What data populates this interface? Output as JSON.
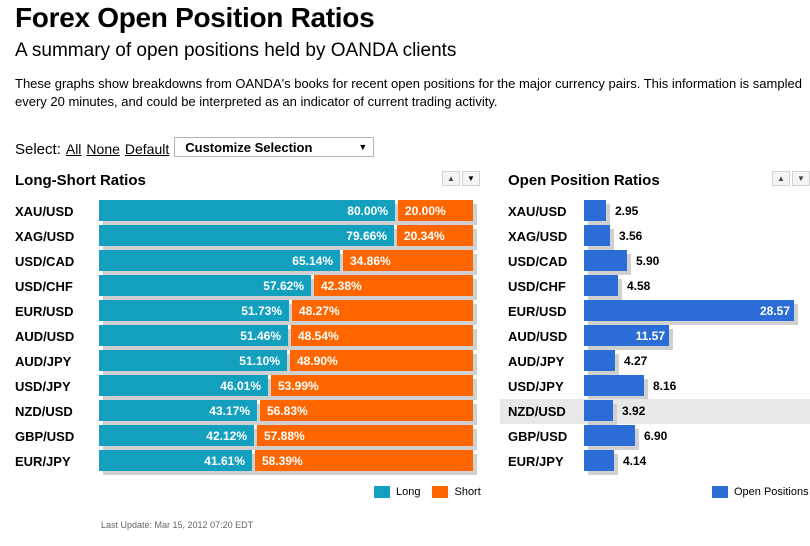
{
  "page": {
    "title": "Forex Open Position Ratios",
    "subtitle": "A summary of open positions held by OANDA clients",
    "description": "These graphs show breakdowns from OANDA's books for recent open positions for the major currency pairs. This information is sampled every 20 minutes, and could be interpreted as an indicator of current trading activity.",
    "last_update": "Last Update: Mar 15, 2012 07:20 EDT"
  },
  "select": {
    "label": "Select:",
    "links": [
      "All",
      "None",
      "Default"
    ],
    "dropdown_value": "Customize Selection"
  },
  "colors": {
    "long": "#13a0bf",
    "short": "#ff6600",
    "open_positions": "#2b6cd6"
  },
  "icons": {
    "sort_up": "triangle-up-icon",
    "sort_down": "triangle-down-icon",
    "dropdown": "triangle-down-icon"
  },
  "chart_data": [
    {
      "type": "bar",
      "orientation": "horizontal-stacked",
      "title": "Long-Short Ratios",
      "categories": [
        "XAU/USD",
        "XAG/USD",
        "USD/CAD",
        "USD/CHF",
        "EUR/USD",
        "AUD/USD",
        "AUD/JPY",
        "USD/JPY",
        "NZD/USD",
        "GBP/USD",
        "EUR/JPY"
      ],
      "series": [
        {
          "name": "Long",
          "values": [
            80.0,
            79.66,
            65.14,
            57.62,
            51.73,
            51.46,
            51.1,
            46.01,
            43.17,
            42.12,
            41.61
          ],
          "labels": [
            "80.00%",
            "79.66%",
            "65.14%",
            "57.62%",
            "51.73%",
            "51.46%",
            "51.10%",
            "46.01%",
            "43.17%",
            "42.12%",
            "41.61%"
          ]
        },
        {
          "name": "Short",
          "values": [
            20.0,
            20.34,
            34.86,
            42.38,
            48.27,
            48.54,
            48.9,
            53.99,
            56.83,
            57.88,
            58.39
          ],
          "labels": [
            "20.00%",
            "20.34%",
            "34.86%",
            "42.38%",
            "48.27%",
            "48.54%",
            "48.90%",
            "53.99%",
            "56.83%",
            "57.88%",
            "58.39%"
          ]
        }
      ],
      "legend": "bottom-right"
    },
    {
      "type": "bar",
      "orientation": "horizontal",
      "title": "Open Position Ratios",
      "categories": [
        "XAU/USD",
        "XAG/USD",
        "USD/CAD",
        "USD/CHF",
        "EUR/USD",
        "AUD/USD",
        "AUD/JPY",
        "USD/JPY",
        "NZD/USD",
        "GBP/USD",
        "EUR/JPY"
      ],
      "series": [
        {
          "name": "Open Positions",
          "values": [
            2.95,
            3.56,
            5.9,
            4.58,
            28.57,
            11.57,
            4.27,
            8.16,
            3.92,
            6.9,
            4.14
          ],
          "labels": [
            "2.95",
            "3.56",
            "5.90",
            "4.58",
            "28.57",
            "11.57",
            "4.27",
            "8.16",
            "3.92",
            "6.90",
            "4.14"
          ]
        }
      ],
      "highlighted_category": "NZD/USD",
      "legend": "bottom-right"
    }
  ]
}
